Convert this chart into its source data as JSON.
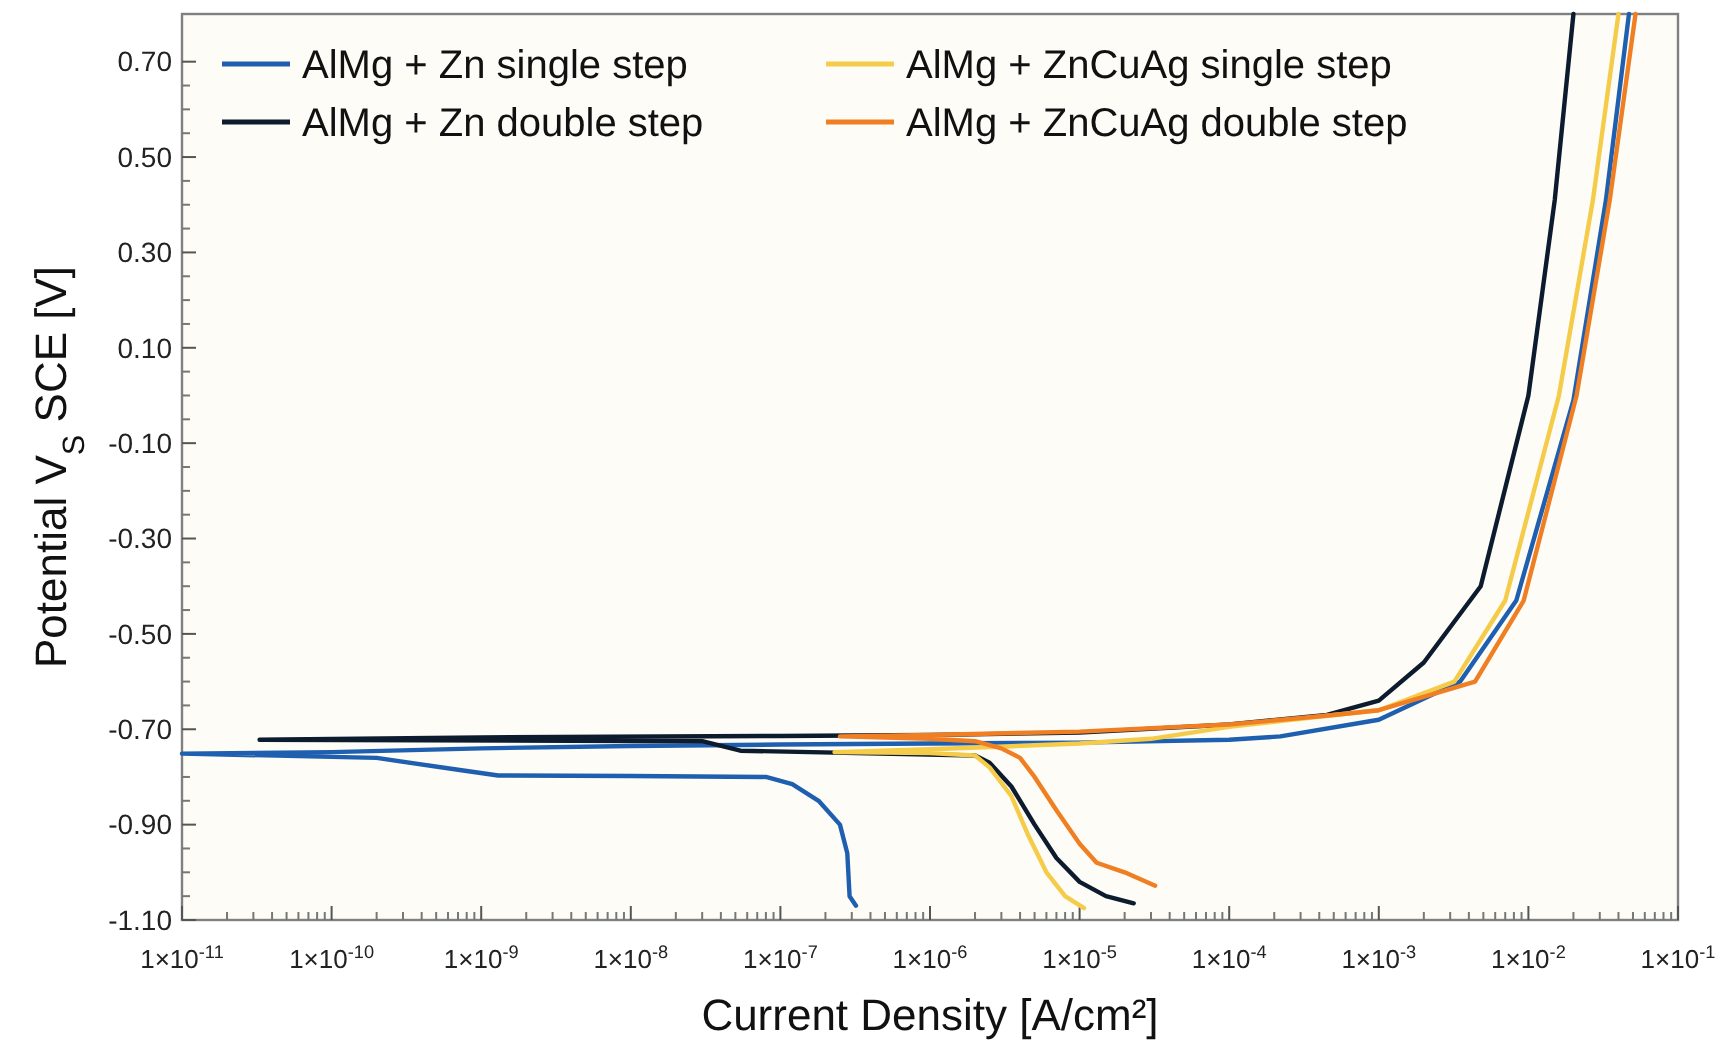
{
  "chart_data": {
    "type": "line",
    "xlabel": "Current Density [A/cm²]",
    "ylabel": "Potential V$_{S}$ SCE [V]",
    "log": "x",
    "xlim": [
      1e-11,
      0.1
    ],
    "ylim": [
      -1.1,
      0.8
    ],
    "xticks": [
      {
        "value": 1e-11,
        "label": "1×10$^{-11}$"
      },
      {
        "value": 1e-10,
        "label": "1×10$^{-10}$"
      },
      {
        "value": 1e-09,
        "label": "1×10$^{-9}$"
      },
      {
        "value": 1e-08,
        "label": "1×10$^{-8}$"
      },
      {
        "value": 1e-07,
        "label": "1×10$^{-7}$"
      },
      {
        "value": 1e-06,
        "label": "1×10$^{-6}$"
      },
      {
        "value": 1e-05,
        "label": "1×10$^{-5}$"
      },
      {
        "value": 0.0001,
        "label": "1×10$^{-4}$"
      },
      {
        "value": 0.001,
        "label": "1×10$^{-3}$"
      },
      {
        "value": 0.01,
        "label": "1×10$^{-2}$"
      },
      {
        "value": 0.1,
        "label": "1×10$^{-1}$"
      }
    ],
    "yticks": [
      {
        "value": 0.7,
        "label": "0.70"
      },
      {
        "value": 0.5,
        "label": "0.50"
      },
      {
        "value": 0.3,
        "label": "0.30"
      },
      {
        "value": 0.1,
        "label": "0.10"
      },
      {
        "value": -0.1,
        "label": "-0.10"
      },
      {
        "value": -0.3,
        "label": "-0.30"
      },
      {
        "value": -0.5,
        "label": "-0.50"
      },
      {
        "value": -0.7,
        "label": "-0.70"
      },
      {
        "value": -0.9,
        "label": "-0.90"
      },
      {
        "value": -1.1,
        "label": "-1.10"
      }
    ],
    "grid": false,
    "legend": "top",
    "line_style": "solid",
    "marker": "none",
    "series": [
      {
        "name": "AlMg + Zn single step",
        "color": "#1f5fb0",
        "x": [
          3.2e-07,
          2.9e-07,
          2.8e-07,
          2.5e-07,
          1.8e-07,
          1.2e-07,
          8e-08,
          1e-08,
          1.3e-09,
          7e-10,
          2e-10,
          1e-11,
          1e-10,
          1e-09,
          1e-08,
          1e-07,
          1e-06,
          1e-05,
          0.0001,
          0.00022,
          0.001,
          0.0035,
          0.0083,
          0.02,
          0.033,
          0.047
        ],
        "values": [
          -1.07,
          -1.05,
          -0.96,
          -0.9,
          -0.85,
          -0.815,
          -0.8,
          -0.798,
          -0.797,
          -0.785,
          -0.76,
          -0.751,
          -0.748,
          -0.74,
          -0.735,
          -0.732,
          -0.73,
          -0.728,
          -0.722,
          -0.715,
          -0.68,
          -0.6,
          -0.43,
          -0.01,
          0.41,
          0.8
        ]
      },
      {
        "name": "AlMg + Zn double step",
        "color": "#0d1b2e",
        "x": [
          2.3e-05,
          1.5e-05,
          1e-05,
          7e-06,
          5e-06,
          3.5e-06,
          2.5e-06,
          2e-06,
          5.4e-08,
          3e-08,
          3.3e-11,
          1e-09,
          1e-07,
          1e-06,
          1e-05,
          0.0001,
          0.00045,
          0.001,
          0.002,
          0.0048,
          0.01,
          0.015,
          0.02
        ],
        "values": [
          -1.065,
          -1.05,
          -1.02,
          -0.97,
          -0.9,
          -0.82,
          -0.77,
          -0.755,
          -0.745,
          -0.725,
          -0.722,
          -0.717,
          -0.714,
          -0.712,
          -0.707,
          -0.69,
          -0.67,
          -0.64,
          -0.56,
          -0.4,
          0.0,
          0.41,
          0.8
        ]
      },
      {
        "name": "AlMg + ZnCuAg single step",
        "color": "#f5cc4a",
        "x": [
          1.07e-05,
          8e-06,
          6e-06,
          4.5e-06,
          3.5e-06,
          2.5e-06,
          2e-06,
          1e-06,
          2.3e-07,
          1e-06,
          1e-05,
          3e-05,
          0.0001,
          0.0005,
          0.001,
          0.0032,
          0.007,
          0.016,
          0.027,
          0.04
        ],
        "values": [
          -1.075,
          -1.05,
          -1.0,
          -0.92,
          -0.84,
          -0.78,
          -0.755,
          -0.75,
          -0.748,
          -0.742,
          -0.73,
          -0.72,
          -0.695,
          -0.67,
          -0.66,
          -0.6,
          -0.43,
          0.0,
          0.41,
          0.8
        ]
      },
      {
        "name": "AlMg + ZnCuAg double step",
        "color": "#f07f24",
        "x": [
          3.2e-05,
          2e-05,
          1.3e-05,
          1e-05,
          7e-06,
          5e-06,
          4e-06,
          3e-06,
          2e-06,
          1e-06,
          2.5e-07,
          1e-06,
          1e-05,
          0.0001,
          0.0005,
          0.001,
          0.0044,
          0.0093,
          0.021,
          0.035,
          0.052
        ],
        "values": [
          -1.028,
          -1.0,
          -0.98,
          -0.94,
          -0.87,
          -0.8,
          -0.76,
          -0.74,
          -0.725,
          -0.72,
          -0.715,
          -0.712,
          -0.705,
          -0.69,
          -0.67,
          -0.66,
          -0.6,
          -0.43,
          0.0,
          0.41,
          0.8
        ]
      }
    ]
  }
}
